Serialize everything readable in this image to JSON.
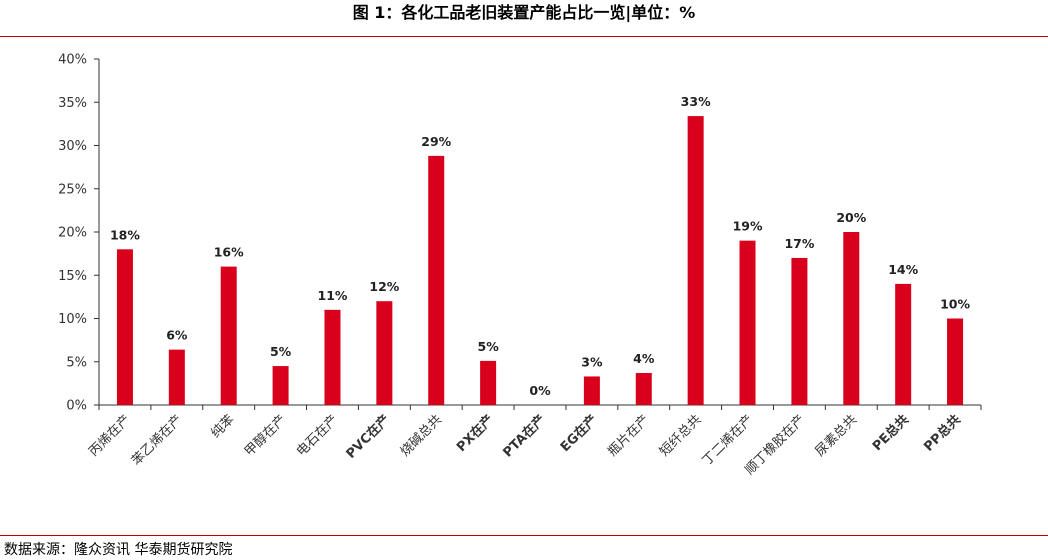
{
  "header": {
    "title": "图 1：各化工品老旧装置产能占比一览|单位：%"
  },
  "footer": {
    "source": "数据来源：隆众资讯  华泰期货研究院"
  },
  "chart_data": {
    "type": "bar",
    "title": "图 1：各化工品老旧装置产能占比一览|单位：%",
    "xlabel": "",
    "ylabel": "",
    "ylim": [
      0,
      40
    ],
    "yticks": [
      "0%",
      "5%",
      "10%",
      "15%",
      "20%",
      "25%",
      "30%",
      "35%",
      "40%"
    ],
    "grid": false,
    "legend": "none",
    "bar_color": "#d9001b",
    "categories": [
      "丙烯在产",
      "苯乙烯在产",
      "纯苯",
      "甲醇在产",
      "电石在产",
      "PVC在产",
      "烧碱总共",
      "PX在产",
      "PTA在产",
      "EG在产",
      "瓶片在产",
      "短纤总共",
      "丁二烯在产",
      "顺丁橡胶在产",
      "尿素总共",
      "PE总共",
      "PP总共"
    ],
    "values": [
      18,
      6.4,
      16,
      4.5,
      11,
      12,
      28.8,
      5.1,
      0,
      3.3,
      3.7,
      33.4,
      19,
      17,
      20,
      14,
      10
    ],
    "data_labels": [
      "18%",
      "6%",
      "16%",
      "5%",
      "11%",
      "12%",
      "29%",
      "5%",
      "0%",
      "3%",
      "4%",
      "33%",
      "19%",
      "17%",
      "20%",
      "14%",
      "10%"
    ]
  }
}
